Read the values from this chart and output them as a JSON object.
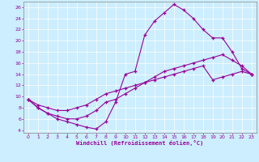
{
  "xlabel": "Windchill (Refroidissement éolien,°C)",
  "ylabel": "",
  "bg_color": "#cceeff",
  "line_color": "#990099",
  "xlim": [
    -0.5,
    23.5
  ],
  "ylim": [
    3.5,
    27
  ],
  "xticks": [
    0,
    1,
    2,
    3,
    4,
    5,
    6,
    7,
    8,
    9,
    10,
    11,
    12,
    13,
    14,
    15,
    16,
    17,
    18,
    19,
    20,
    21,
    22,
    23
  ],
  "yticks": [
    4,
    6,
    8,
    10,
    12,
    14,
    16,
    18,
    20,
    22,
    24,
    26
  ],
  "line1_x": [
    0,
    1,
    2,
    3,
    4,
    5,
    6,
    7,
    8,
    9,
    10,
    11,
    12,
    13,
    14,
    15,
    16,
    17,
    18,
    19,
    20,
    21,
    22,
    23
  ],
  "line1_y": [
    9.5,
    8.0,
    7.0,
    6.0,
    5.5,
    5.0,
    4.5,
    4.2,
    5.5,
    9.0,
    14.0,
    14.5,
    21.0,
    23.5,
    25.0,
    26.5,
    25.5,
    24.0,
    22.0,
    20.5,
    20.5,
    18.0,
    15.0,
    14.0
  ],
  "line2_x": [
    0,
    1,
    2,
    3,
    4,
    5,
    6,
    7,
    8,
    9,
    10,
    11,
    12,
    13,
    14,
    15,
    16,
    17,
    18,
    19,
    20,
    21,
    22,
    23
  ],
  "line2_y": [
    9.5,
    8.5,
    8.0,
    7.5,
    7.5,
    8.0,
    8.5,
    9.5,
    10.5,
    11.0,
    11.5,
    12.0,
    12.5,
    13.0,
    13.5,
    14.0,
    14.5,
    15.0,
    15.5,
    13.0,
    13.5,
    14.0,
    14.5,
    14.0
  ],
  "line3_x": [
    0,
    1,
    2,
    3,
    4,
    5,
    6,
    7,
    8,
    9,
    10,
    11,
    12,
    13,
    14,
    15,
    16,
    17,
    18,
    19,
    20,
    21,
    22,
    23
  ],
  "line3_y": [
    9.5,
    8.0,
    7.0,
    6.5,
    6.0,
    6.0,
    6.5,
    7.5,
    9.0,
    9.5,
    10.5,
    11.5,
    12.5,
    13.5,
    14.5,
    15.0,
    15.5,
    16.0,
    16.5,
    17.0,
    17.5,
    16.5,
    15.5,
    14.0
  ]
}
